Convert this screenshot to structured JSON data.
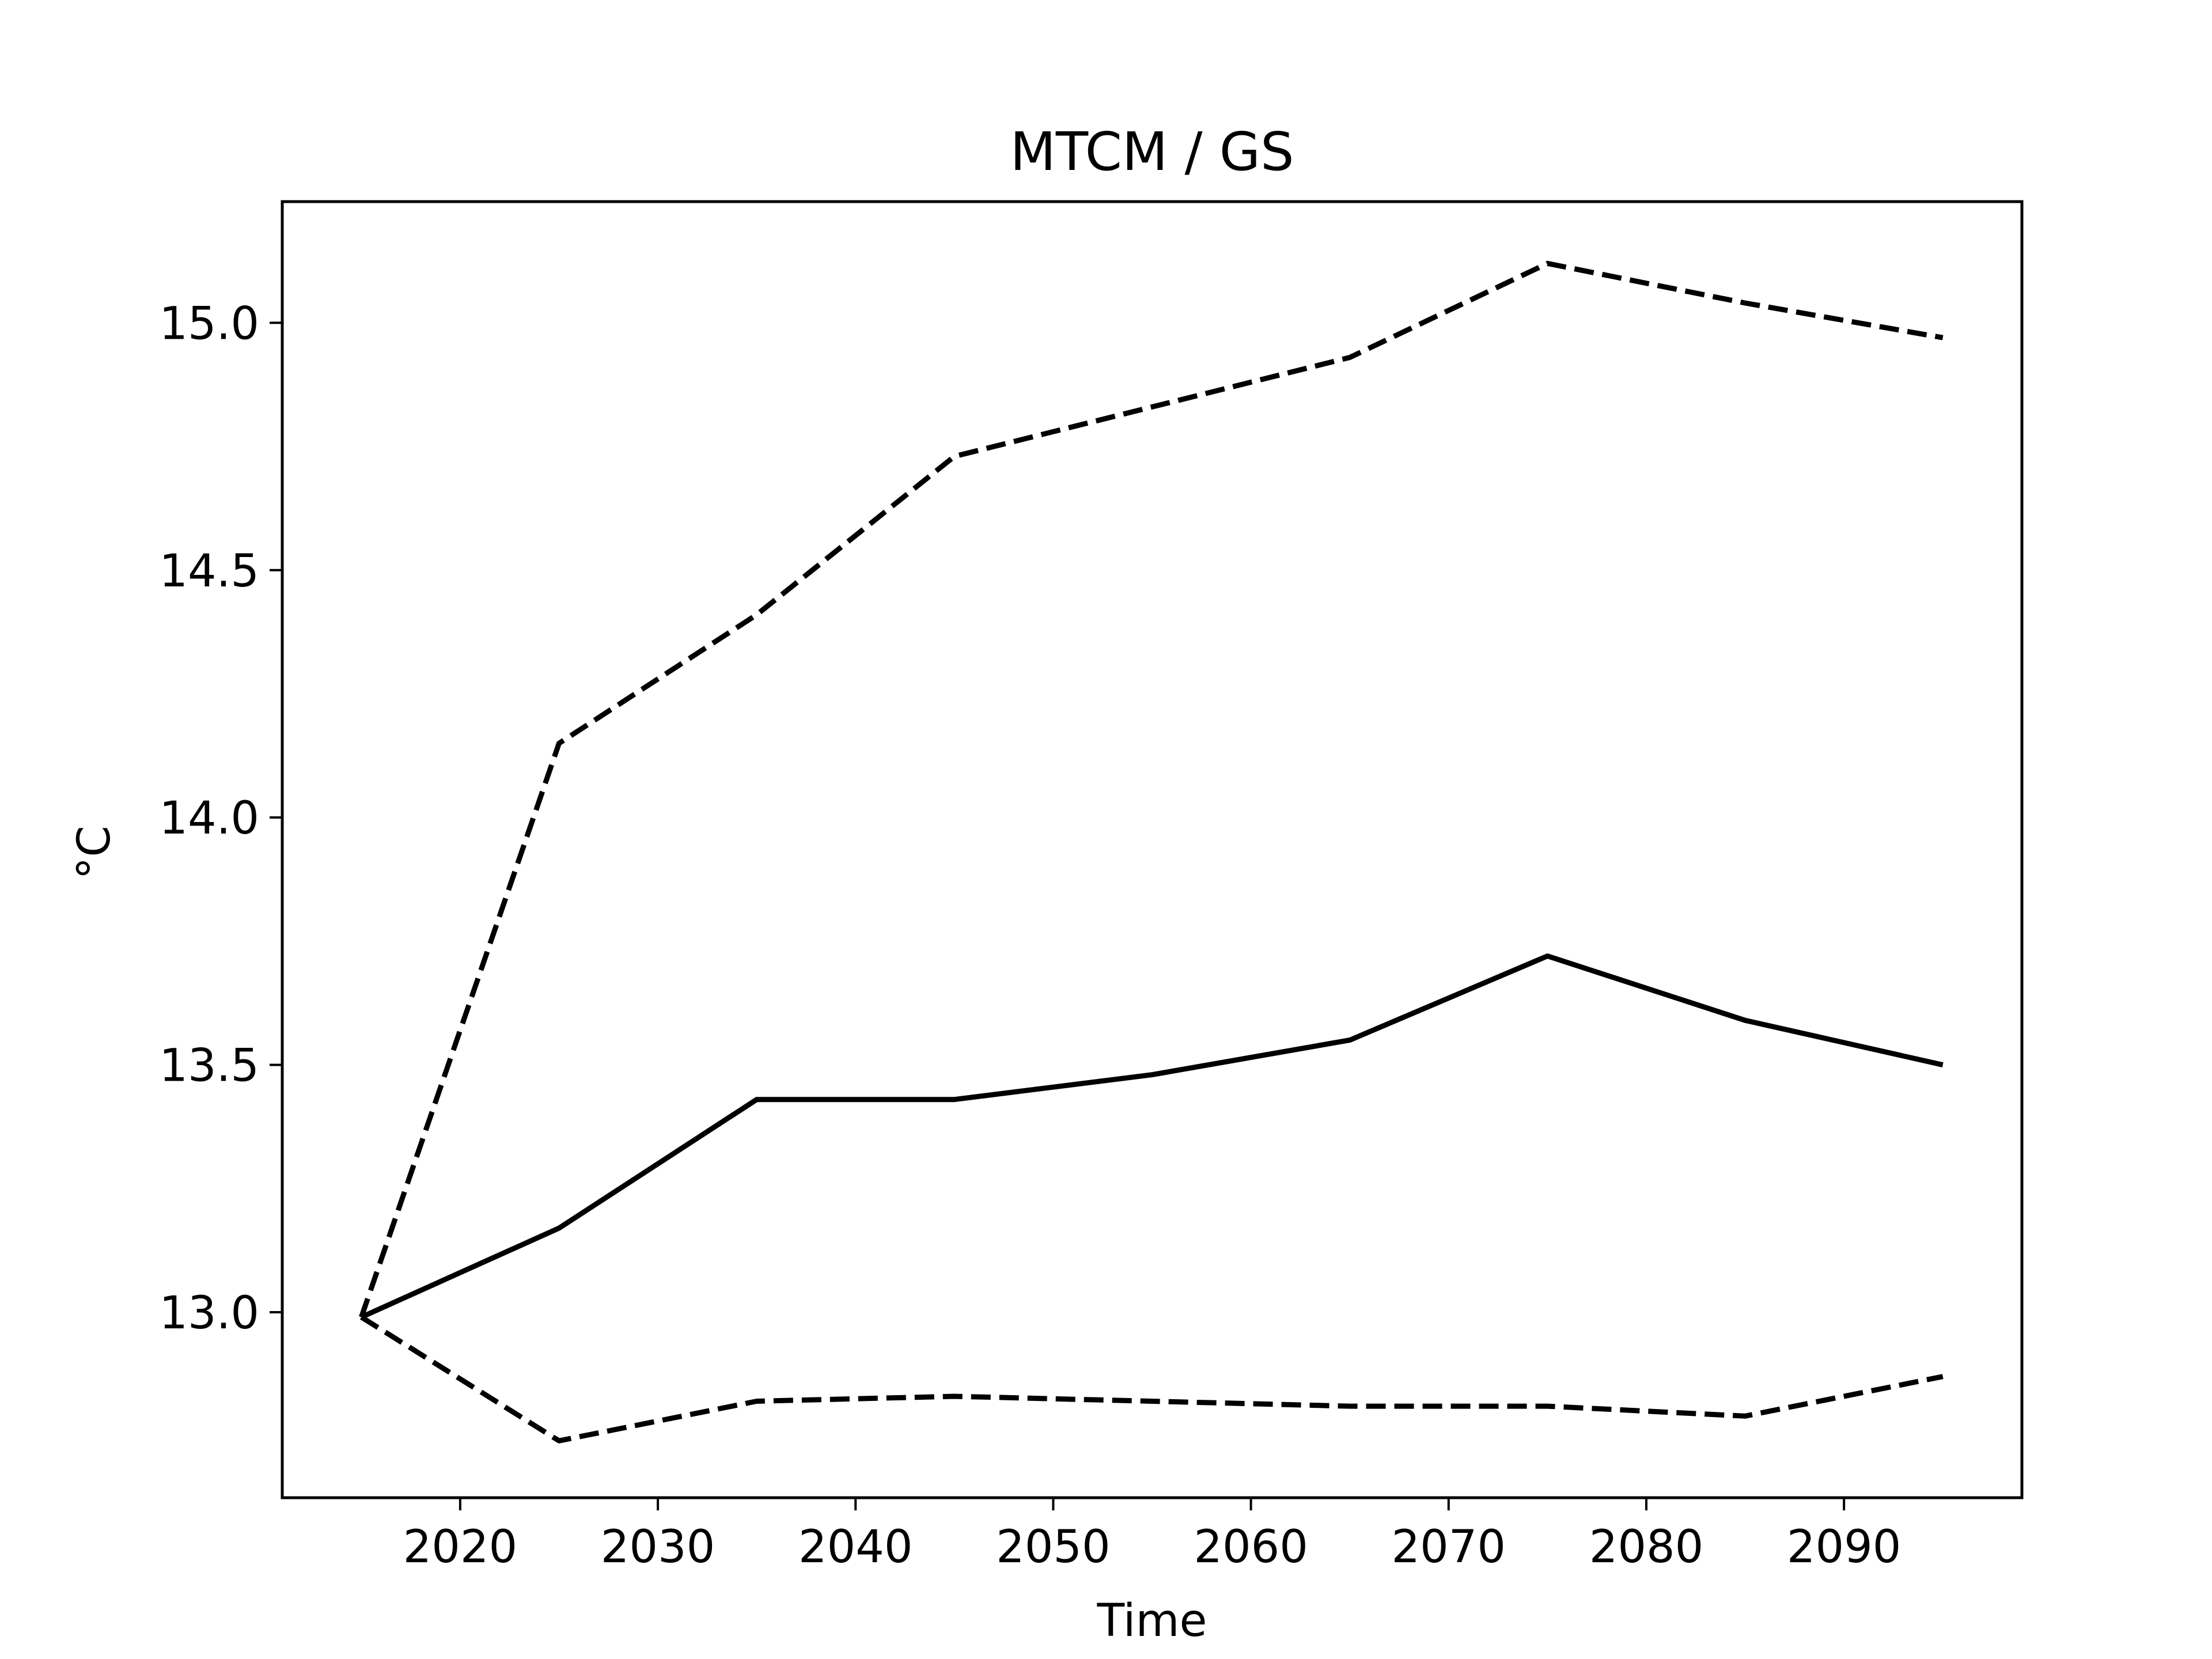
{
  "chart_data": {
    "type": "line",
    "title": "MTCM / GS",
    "xlabel": "Time",
    "ylabel": "°C",
    "xlim": [
      2011,
      2099
    ],
    "ylim": [
      12.625,
      15.245
    ],
    "xticks": [
      2020,
      2030,
      2040,
      2050,
      2060,
      2070,
      2080,
      2090
    ],
    "xtick_labels": [
      "2020",
      "2030",
      "2040",
      "2050",
      "2060",
      "2070",
      "2080",
      "2090"
    ],
    "yticks": [
      13.0,
      13.5,
      14.0,
      14.5,
      15.0
    ],
    "ytick_labels": [
      "13.0",
      "13.5",
      "14.0",
      "14.5",
      "15.0"
    ],
    "grid": false,
    "x": [
      2015,
      2025,
      2035,
      2045,
      2055,
      2065,
      2075,
      2085,
      2095
    ],
    "series": [
      {
        "style": "dashed",
        "color": "#000000",
        "values": [
          12.99,
          14.15,
          14.41,
          14.73,
          14.83,
          14.93,
          15.12,
          15.04,
          14.97
        ]
      },
      {
        "style": "solid",
        "color": "#000000",
        "values": [
          12.99,
          13.17,
          13.43,
          13.43,
          13.48,
          13.55,
          13.72,
          13.59,
          13.5
        ]
      },
      {
        "style": "dashed",
        "color": "#000000",
        "values": [
          12.99,
          12.74,
          12.82,
          12.83,
          12.82,
          12.81,
          12.81,
          12.79,
          12.87
        ]
      }
    ]
  }
}
